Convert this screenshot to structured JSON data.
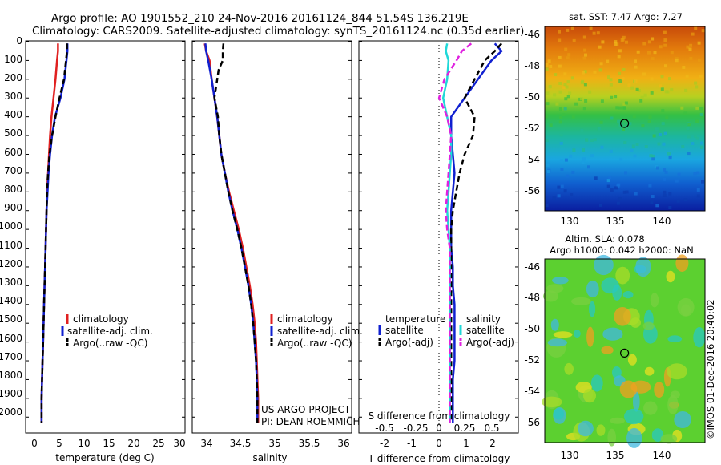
{
  "header": {
    "line1": "Argo profile: AO 1901552_210 24-Nov-2016 20161124_844 51.54S 136.219E",
    "line2": "Climatology: CARS2009. Satellite-adjusted climatology: synTS_20161124.nc (0.35d earlier)"
  },
  "depth_ticks": [
    "0",
    "100",
    "200",
    "300",
    "400",
    "500",
    "600",
    "700",
    "800",
    "900",
    "1000",
    "1100",
    "1200",
    "1300",
    "1400",
    "1500",
    "1600",
    "1700",
    "1800",
    "1900",
    "2000"
  ],
  "credit": [
    "US ARGO PROJECT",
    "PI: DEAN ROEMMICH"
  ],
  "stamp": "©IMOS 01-Dec-2016 20:40:02",
  "map_sst": {
    "title": "sat. SST: 7.47 Argo: 7.27",
    "yticks": [
      "-46",
      "-48",
      "-50",
      "-52",
      "-54",
      "-56"
    ],
    "xticks": [
      "130",
      "135",
      "140"
    ],
    "lat_range": [
      -56.8,
      -45.7
    ],
    "lon_range": [
      128.3,
      144.2
    ],
    "float_lat": -51.54,
    "float_lon": 136.219
  },
  "map_sla": {
    "title1": "Altim. SLA: 0.078",
    "title2": "Argo h1000: 0.042 h2000: NaN",
    "yticks": [
      "-46",
      "-48",
      "-50",
      "-52",
      "-54",
      "-56"
    ],
    "xticks": [
      "130",
      "135",
      "140"
    ],
    "lat_range": [
      -57.0,
      -45.8
    ],
    "lon_range": [
      128.3,
      144.2
    ],
    "float_lat": -51.54,
    "float_lon": 136.219
  },
  "chart_data": [
    {
      "type": "line",
      "xlabel": "temperature (deg C)",
      "ylabel": "",
      "xlim": [
        -1,
        31
      ],
      "ylim": [
        2080,
        0
      ],
      "xticks": [
        "0",
        "5",
        "10",
        "15",
        "20",
        "25",
        "30"
      ],
      "legend": [
        "climatology",
        "satellite-adj. clim.",
        "Argo(..raw -QC)"
      ],
      "legend_placement": "lower-center",
      "series": [
        {
          "name": "climatology",
          "color": "#e02020",
          "x": [
            5.5,
            5.5,
            5.3,
            5.0,
            4.6,
            4.2,
            3.9,
            3.7,
            3.5,
            3.3,
            3.2,
            3.1,
            3.0,
            2.9,
            2.8,
            2.7,
            2.6,
            2.5,
            2.4,
            2.3,
            2.2,
            2.2
          ],
          "y": [
            10,
            50,
            100,
            200,
            300,
            400,
            500,
            600,
            700,
            800,
            900,
            1000,
            1100,
            1200,
            1300,
            1400,
            1500,
            1600,
            1700,
            1800,
            1900,
            2030
          ]
        },
        {
          "name": "satellite-adj. clim.",
          "color": "#1020d0",
          "x": [
            7.4,
            7.4,
            7.2,
            6.8,
            6.0,
            4.9,
            4.3,
            3.9,
            3.6,
            3.4,
            3.2,
            3.1,
            3.0,
            2.9,
            2.8,
            2.7,
            2.6,
            2.5,
            2.4,
            2.3,
            2.2,
            2.2
          ],
          "y": [
            10,
            50,
            100,
            200,
            300,
            400,
            500,
            600,
            700,
            800,
            900,
            1000,
            1100,
            1200,
            1300,
            1400,
            1500,
            1600,
            1700,
            1800,
            1900,
            2030
          ]
        },
        {
          "name": "Argo(..raw -QC)",
          "color": "#000000",
          "x": [
            7.3,
            7.3,
            7.1,
            6.7,
            5.8,
            5.0,
            4.3,
            3.8,
            3.5,
            3.3,
            3.2,
            3.1,
            3.0,
            2.9,
            2.8,
            2.7,
            2.6,
            2.5,
            2.4,
            2.3,
            2.2,
            2.2
          ],
          "y": [
            10,
            50,
            100,
            200,
            300,
            400,
            500,
            600,
            700,
            800,
            900,
            1000,
            1100,
            1200,
            1300,
            1400,
            1500,
            1600,
            1700,
            1800,
            1900,
            2030
          ]
        }
      ]
    },
    {
      "type": "line",
      "xlabel": "salinity",
      "ylabel": "",
      "xlim": [
        33.8,
        36.1
      ],
      "ylim": [
        2080,
        0
      ],
      "xticks": [
        "34",
        "34.5",
        "35",
        "35.5",
        "36"
      ],
      "legend": [
        "climatology",
        "satellite-adj. clim.",
        "Argo(..raw -QC)"
      ],
      "legend_placement": "lower-right",
      "series": [
        {
          "name": "climatology",
          "color": "#e02020",
          "x": [
            33.98,
            34.0,
            34.05,
            34.08,
            34.12,
            34.16,
            34.19,
            34.22,
            34.27,
            34.33,
            34.4,
            34.47,
            34.53,
            34.58,
            34.63,
            34.67,
            34.7,
            34.72,
            34.73,
            34.74,
            34.75,
            34.75
          ],
          "y": [
            10,
            50,
            100,
            200,
            300,
            400,
            500,
            600,
            700,
            800,
            900,
            1000,
            1100,
            1200,
            1300,
            1400,
            1500,
            1600,
            1700,
            1800,
            1900,
            2030
          ]
        },
        {
          "name": "satellite-adj. clim.",
          "color": "#1020d0",
          "x": [
            33.99,
            34.0,
            34.03,
            34.08,
            34.12,
            34.16,
            34.19,
            34.22,
            34.27,
            34.32,
            34.38,
            34.45,
            34.51,
            34.56,
            34.61,
            34.65,
            34.68,
            34.7,
            34.72,
            34.73,
            34.74,
            34.74
          ],
          "y": [
            10,
            50,
            100,
            200,
            300,
            400,
            500,
            600,
            700,
            800,
            900,
            1000,
            1100,
            1200,
            1300,
            1400,
            1500,
            1600,
            1700,
            1800,
            1900,
            2030
          ]
        },
        {
          "name": "Argo(..raw -QC)",
          "color": "#000000",
          "x": [
            34.25,
            34.24,
            34.24,
            34.18,
            34.12,
            34.17,
            34.19,
            34.22,
            34.27,
            34.32,
            34.38,
            34.45,
            34.51,
            34.56,
            34.61,
            34.65,
            34.68,
            34.7,
            34.72,
            34.73,
            34.74,
            34.74
          ],
          "y": [
            10,
            50,
            100,
            150,
            300,
            400,
            500,
            600,
            700,
            800,
            900,
            1000,
            1100,
            1200,
            1300,
            1400,
            1500,
            1600,
            1700,
            1800,
            1900,
            2030
          ]
        }
      ]
    },
    {
      "type": "line",
      "xlabel": "T difference from climatology",
      "xlabel_top": "S difference from climatology",
      "xlim": [
        -2.75,
        2.0
      ],
      "ylim": [
        2080,
        0
      ],
      "xticks": [
        "-2",
        "-1",
        "0",
        "1",
        "2"
      ],
      "xticks_top": [
        "-0.5",
        "-0.25",
        "0",
        "0.25",
        "0.5"
      ],
      "legend_headers": [
        "temperature",
        "salinity"
      ],
      "legend": [
        "satellite",
        "Argo(-adj)",
        "satellite",
        "Argo(-adj)"
      ],
      "legend_placement": "lower-center",
      "series": [
        {
          "name": "satellite",
          "color": "#1020d0",
          "x": [
            1.3,
            1.5,
            1.2,
            0.8,
            0.4,
            0.0,
            0.0,
            0.05,
            0.1,
            0.05,
            0.0,
            0.0,
            0.0,
            0.05,
            0.05,
            0.1,
            0.1,
            0.1,
            0.1,
            0.05,
            0.05,
            0.05
          ],
          "y": [
            10,
            50,
            100,
            200,
            300,
            400,
            500,
            600,
            700,
            800,
            900,
            1000,
            1100,
            1200,
            1300,
            1400,
            1500,
            1600,
            1700,
            1800,
            1900,
            2030
          ]
        },
        {
          "name": "Argo(-adj)",
          "color": "#000000",
          "x": [
            1.5,
            1.3,
            1.0,
            0.7,
            0.4,
            0.7,
            0.65,
            0.4,
            0.25,
            0.15,
            0.05,
            0.0,
            0.0,
            0.0,
            0.0,
            0.0,
            0.0,
            0.0,
            0.0,
            0.0,
            0.0,
            0.0
          ],
          "y": [
            10,
            50,
            100,
            200,
            300,
            400,
            500,
            600,
            700,
            800,
            900,
            1000,
            1100,
            1200,
            1300,
            1400,
            1500,
            1600,
            1700,
            1800,
            1900,
            2030
          ]
        },
        {
          "name": "satellite",
          "color": "#20d8d8",
          "x": [
            -0.03,
            -0.04,
            -0.02,
            -0.03,
            -0.06,
            -0.03,
            0.0,
            0.0,
            -0.01,
            -0.02,
            -0.03,
            -0.02,
            -0.01,
            -0.01,
            -0.01,
            -0.01,
            -0.01,
            -0.01,
            -0.01,
            -0.01,
            -0.01,
            -0.01
          ],
          "y": [
            10,
            50,
            100,
            200,
            300,
            400,
            500,
            600,
            700,
            800,
            900,
            1000,
            1100,
            1200,
            1300,
            1400,
            1500,
            1600,
            1700,
            1800,
            1900,
            2030
          ]
        },
        {
          "name": "Argo(-adj)",
          "color": "#e020e0",
          "x": [
            0.15,
            0.08,
            0.04,
            -0.05,
            -0.09,
            -0.03,
            0.0,
            -0.01,
            -0.02,
            -0.03,
            -0.04,
            -0.03,
            -0.01,
            -0.01,
            -0.01,
            -0.01,
            -0.01,
            -0.01,
            -0.01,
            -0.01,
            -0.01,
            -0.01
          ],
          "y": [
            10,
            50,
            100,
            200,
            300,
            400,
            500,
            600,
            700,
            800,
            900,
            1000,
            1100,
            1200,
            1300,
            1400,
            1500,
            1600,
            1700,
            1800,
            1900,
            2030
          ]
        }
      ]
    }
  ]
}
